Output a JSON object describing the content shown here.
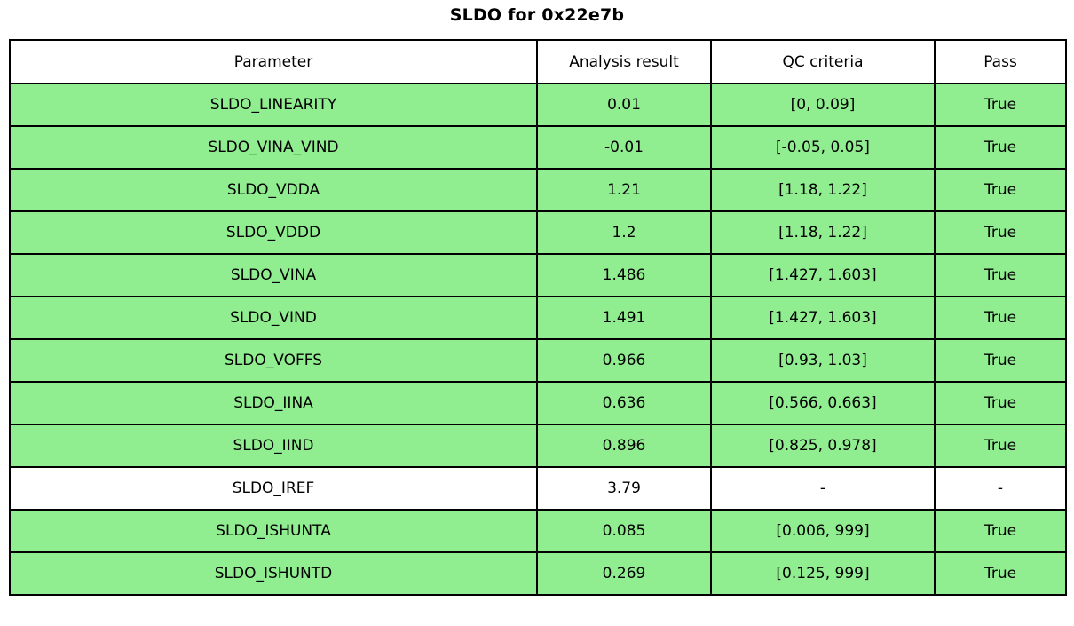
{
  "title": "SLDO for 0x22e7b",
  "chart_data": {
    "type": "table",
    "title": "SLDO for 0x22e7b",
    "columns": [
      "Parameter",
      "Analysis result",
      "QC criteria",
      "Pass"
    ],
    "rows": [
      {
        "parameter": "SLDO_LINEARITY",
        "result": "0.01",
        "criteria": "[0, 0.09]",
        "pass": "True",
        "highlight": true
      },
      {
        "parameter": "SLDO_VINA_VIND",
        "result": "-0.01",
        "criteria": "[-0.05, 0.05]",
        "pass": "True",
        "highlight": true
      },
      {
        "parameter": "SLDO_VDDA",
        "result": "1.21",
        "criteria": "[1.18, 1.22]",
        "pass": "True",
        "highlight": true
      },
      {
        "parameter": "SLDO_VDDD",
        "result": "1.2",
        "criteria": "[1.18, 1.22]",
        "pass": "True",
        "highlight": true
      },
      {
        "parameter": "SLDO_VINA",
        "result": "1.486",
        "criteria": "[1.427, 1.603]",
        "pass": "True",
        "highlight": true
      },
      {
        "parameter": "SLDO_VIND",
        "result": "1.491",
        "criteria": "[1.427, 1.603]",
        "pass": "True",
        "highlight": true
      },
      {
        "parameter": "SLDO_VOFFS",
        "result": "0.966",
        "criteria": "[0.93, 1.03]",
        "pass": "True",
        "highlight": true
      },
      {
        "parameter": "SLDO_IINA",
        "result": "0.636",
        "criteria": "[0.566, 0.663]",
        "pass": "True",
        "highlight": true
      },
      {
        "parameter": "SLDO_IIND",
        "result": "0.896",
        "criteria": "[0.825, 0.978]",
        "pass": "True",
        "highlight": true
      },
      {
        "parameter": "SLDO_IREF",
        "result": "3.79",
        "criteria": "-",
        "pass": "-",
        "highlight": false
      },
      {
        "parameter": "SLDO_ISHUNTA",
        "result": "0.085",
        "criteria": "[0.006, 999]",
        "pass": "True",
        "highlight": true
      },
      {
        "parameter": "SLDO_ISHUNTD",
        "result": "0.269",
        "criteria": "[0.125, 999]",
        "pass": "True",
        "highlight": true
      }
    ],
    "colors": {
      "pass_row_background": "#90EE90",
      "plain_row_background": "#ffffff",
      "border": "#000000",
      "text": "#000000"
    },
    "layout_hints": {
      "column_width_fractions": [
        0.499,
        0.165,
        0.212,
        0.124
      ],
      "header_background": "#ffffff"
    }
  }
}
